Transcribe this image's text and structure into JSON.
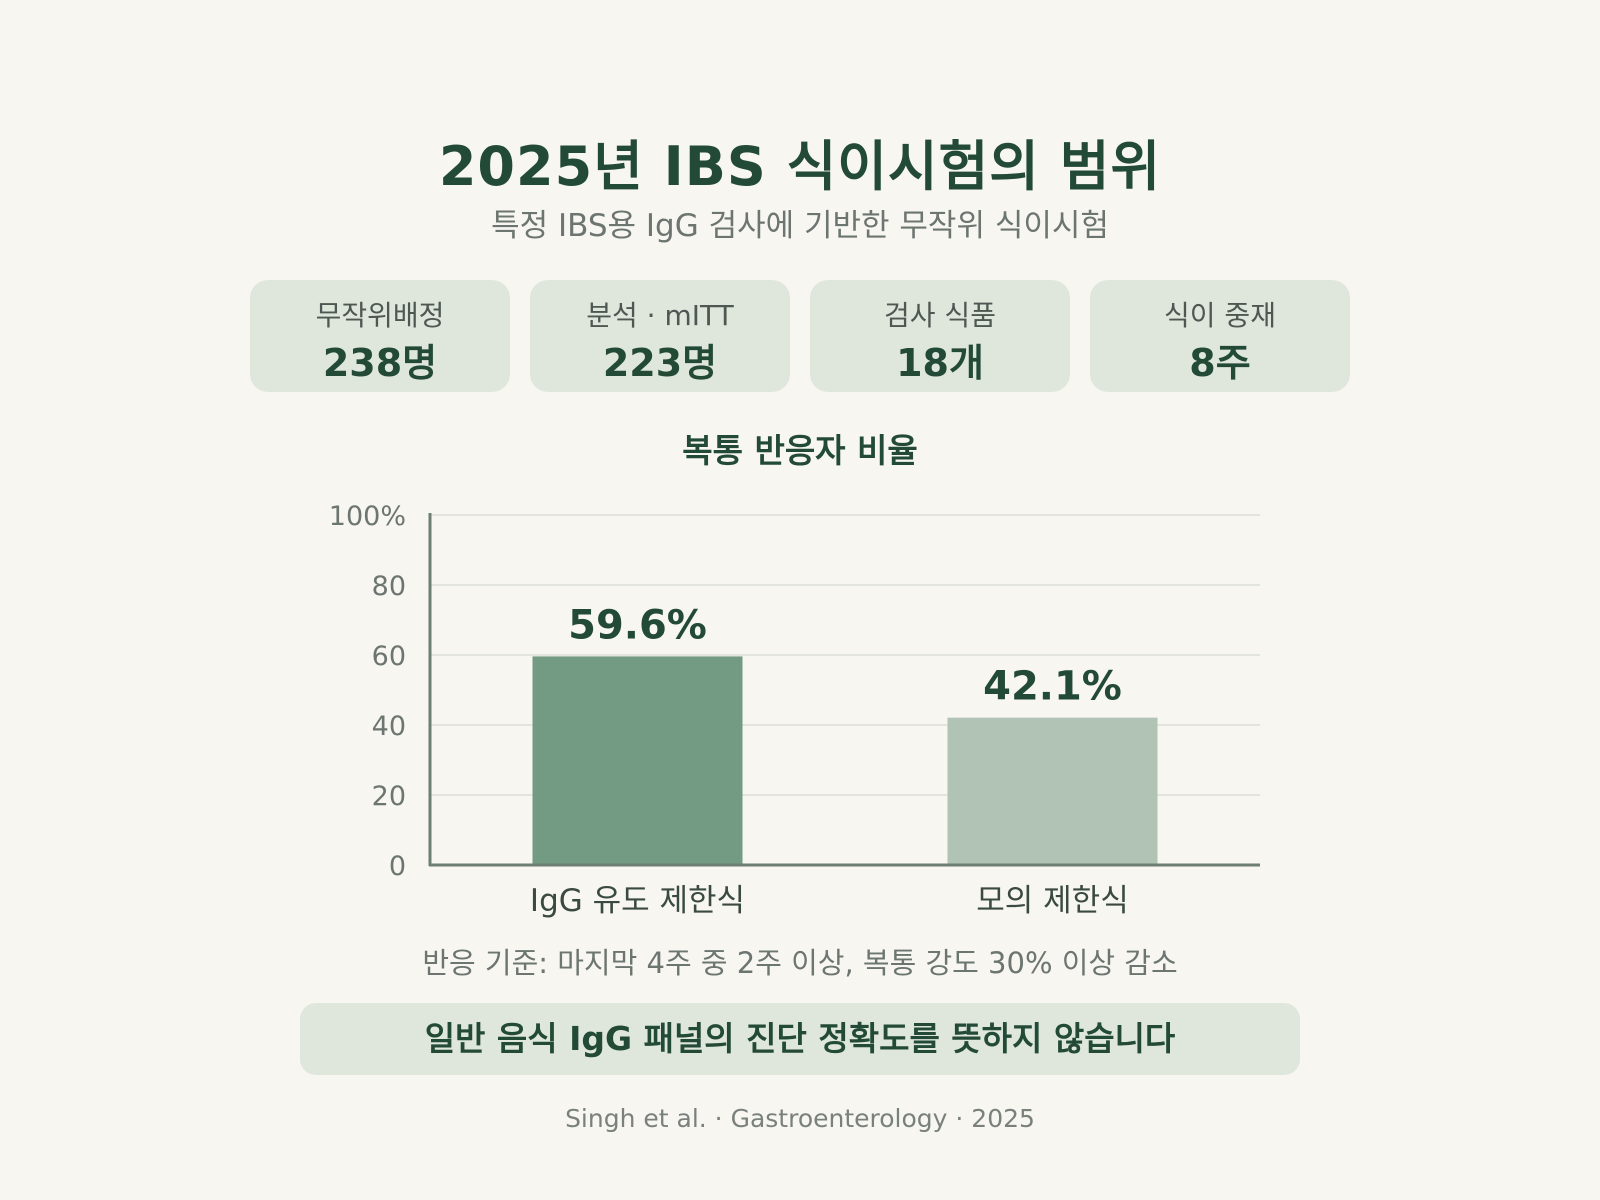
{
  "header": {
    "title": "2025년 IBS 식이시험의 범위",
    "subtitle": "특정 IBS용 IgG 검사에 기반한 무작위 식이시험"
  },
  "stats": [
    {
      "label": "무작위배정",
      "value": "238명"
    },
    {
      "label": "분석 · mITT",
      "value": "223명"
    },
    {
      "label": "검사 식품",
      "value": "18개"
    },
    {
      "label": "식이 중재",
      "value": "8주"
    }
  ],
  "chart_data": {
    "type": "bar",
    "title": "복통 반응자 비율",
    "categories": [
      "IgG 유도 제한식",
      "모의 제한식"
    ],
    "values": [
      59.6,
      42.1
    ],
    "value_labels": [
      "59.6%",
      "42.1%"
    ],
    "y_ticks": [
      0,
      20,
      40,
      60,
      80,
      100
    ],
    "y_tick_labels": [
      "0",
      "20",
      "40",
      "60",
      "80",
      "100%"
    ],
    "ylim": [
      0,
      100
    ],
    "grid": true,
    "colors": [
      "#739b84",
      "#b1c3b4"
    ]
  },
  "note": "반응 기준: 마지막 4주 중 2주 이상, 복통 강도 30% 이상 감소",
  "banner": "일반 음식 IgG 패널의 진단 정확도를 뜻하지 않습니다",
  "source": "Singh et al. · Gastroenterology · 2025",
  "colors": {
    "background": "#f7f6f1",
    "card": "#dfe7dd",
    "text_dark": "#234a37",
    "grid": "#dcdfd8",
    "axis": "#6d7e72"
  }
}
